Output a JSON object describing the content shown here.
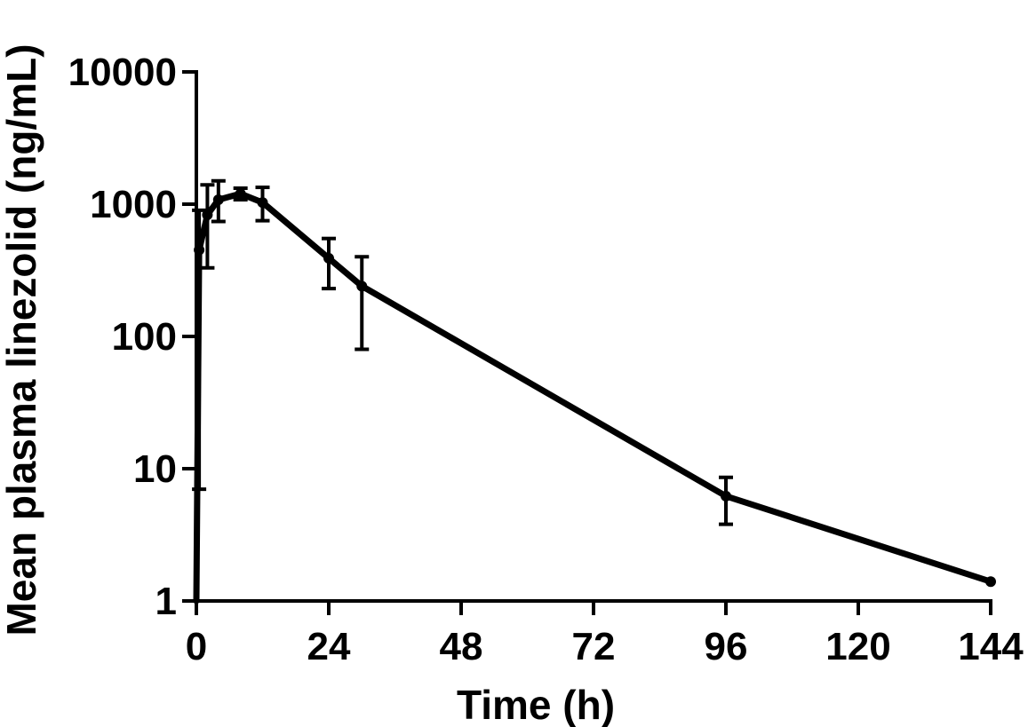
{
  "chart_data": {
    "type": "line",
    "title": "",
    "xlabel": "Time (h)",
    "ylabel": "Mean plasma linezolid (ng/mL)",
    "x_scale": "linear",
    "y_scale": "log",
    "xlim": [
      0,
      144
    ],
    "ylim": [
      1,
      10000
    ],
    "x_ticks": [
      "0",
      "24",
      "48",
      "72",
      "96",
      "120",
      "144"
    ],
    "y_ticks": [
      "1",
      "10",
      "100",
      "1000",
      "10000"
    ],
    "grid": false,
    "legend": "none",
    "series": [
      {
        "color": "#000000",
        "points": [
          {
            "x": 0,
            "y": 1,
            "err_low": null,
            "err_high": null
          },
          {
            "x": 0.5,
            "y": 450,
            "err_low": 7,
            "err_high": 900
          },
          {
            "x": 2,
            "y": 830,
            "err_low": 330,
            "err_high": 1400
          },
          {
            "x": 4,
            "y": 1080,
            "err_low": 740,
            "err_high": 1500
          },
          {
            "x": 8,
            "y": 1200,
            "err_low": 1080,
            "err_high": 1320
          },
          {
            "x": 12,
            "y": 1030,
            "err_low": 750,
            "err_high": 1340
          },
          {
            "x": 24,
            "y": 390,
            "err_low": 230,
            "err_high": 550
          },
          {
            "x": 30,
            "y": 240,
            "err_low": 80,
            "err_high": 400
          },
          {
            "x": 96,
            "y": 6.2,
            "err_low": 3.8,
            "err_high": 8.6
          },
          {
            "x": 144,
            "y": 1.4,
            "err_low": null,
            "err_high": null
          }
        ]
      }
    ]
  }
}
